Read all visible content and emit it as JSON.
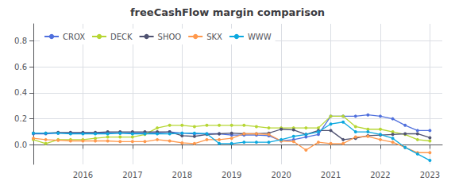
{
  "chart_data": {
    "type": "line",
    "title": "freeCashFlow margin comparison",
    "x": [
      2015.0,
      2015.25,
      2015.5,
      2015.75,
      2016.0,
      2016.25,
      2016.5,
      2016.75,
      2017.0,
      2017.25,
      2017.5,
      2017.75,
      2018.0,
      2018.25,
      2018.5,
      2018.75,
      2019.0,
      2019.25,
      2019.5,
      2019.75,
      2020.0,
      2020.25,
      2020.5,
      2020.75,
      2021.0,
      2021.25,
      2021.5,
      2021.75,
      2022.0,
      2022.25,
      2022.5,
      2022.75,
      2023.0
    ],
    "series": [
      {
        "name": "CROX",
        "values": [
          0.085,
          0.085,
          0.09,
          0.09,
          0.09,
          0.09,
          0.09,
          0.09,
          0.09,
          0.09,
          0.09,
          0.1,
          0.09,
          0.085,
          0.085,
          0.085,
          0.075,
          0.075,
          0.075,
          0.07,
          0.03,
          0.04,
          0.06,
          0.08,
          0.22,
          0.22,
          0.22,
          0.23,
          0.22,
          0.2,
          0.15,
          0.11,
          0.11
        ]
      },
      {
        "name": "DECK",
        "values": [
          0.04,
          0.01,
          0.04,
          0.04,
          0.04,
          0.05,
          0.06,
          0.06,
          0.06,
          0.08,
          0.13,
          0.15,
          0.15,
          0.14,
          0.15,
          0.15,
          0.15,
          0.15,
          0.14,
          0.13,
          0.13,
          0.13,
          0.13,
          0.13,
          0.22,
          0.22,
          0.14,
          0.12,
          0.12,
          0.1,
          0.08,
          0.04,
          0.03
        ]
      },
      {
        "name": "SHOO",
        "values": [
          0.09,
          0.09,
          0.095,
          0.095,
          0.095,
          0.095,
          0.1,
          0.1,
          0.1,
          0.1,
          0.1,
          0.1,
          0.07,
          0.065,
          0.08,
          0.085,
          0.09,
          0.085,
          0.085,
          0.09,
          0.12,
          0.115,
          0.08,
          0.11,
          0.11,
          0.04,
          0.05,
          0.07,
          0.075,
          0.08,
          0.085,
          0.085,
          0.055
        ]
      },
      {
        "name": "SKX",
        "values": [
          0.05,
          0.04,
          0.035,
          0.03,
          0.03,
          0.03,
          0.03,
          0.025,
          0.025,
          0.025,
          0.04,
          0.03,
          0.015,
          0.01,
          0.04,
          0.04,
          0.05,
          0.085,
          0.085,
          0.08,
          0.03,
          0.025,
          -0.04,
          0.02,
          0.01,
          0.01,
          0.06,
          0.065,
          0.04,
          0.02,
          -0.02,
          -0.06,
          -0.06
        ]
      },
      {
        "name": "WWW",
        "values": [
          0.09,
          0.09,
          0.09,
          0.085,
          0.085,
          0.085,
          0.085,
          0.09,
          0.085,
          0.085,
          0.085,
          0.085,
          0.09,
          0.09,
          0.085,
          0.01,
          0.01,
          0.02,
          0.02,
          0.02,
          0.04,
          0.065,
          0.08,
          0.1,
          0.16,
          0.175,
          0.1,
          0.1,
          0.08,
          0.05,
          -0.02,
          -0.07,
          -0.12
        ]
      }
    ],
    "xlim": [
      2015.0,
      2023.25
    ],
    "xticks": [
      2016,
      2017,
      2018,
      2019,
      2020,
      2021,
      2022,
      2023
    ],
    "ylim": [
      -0.15,
      0.93
    ],
    "yticks": [
      {
        "value": 0.0,
        "label": "0.0"
      },
      0.2,
      0.4,
      0.6,
      0.8
    ],
    "grid": true,
    "legend": "upper left",
    "marker": "circle"
  }
}
